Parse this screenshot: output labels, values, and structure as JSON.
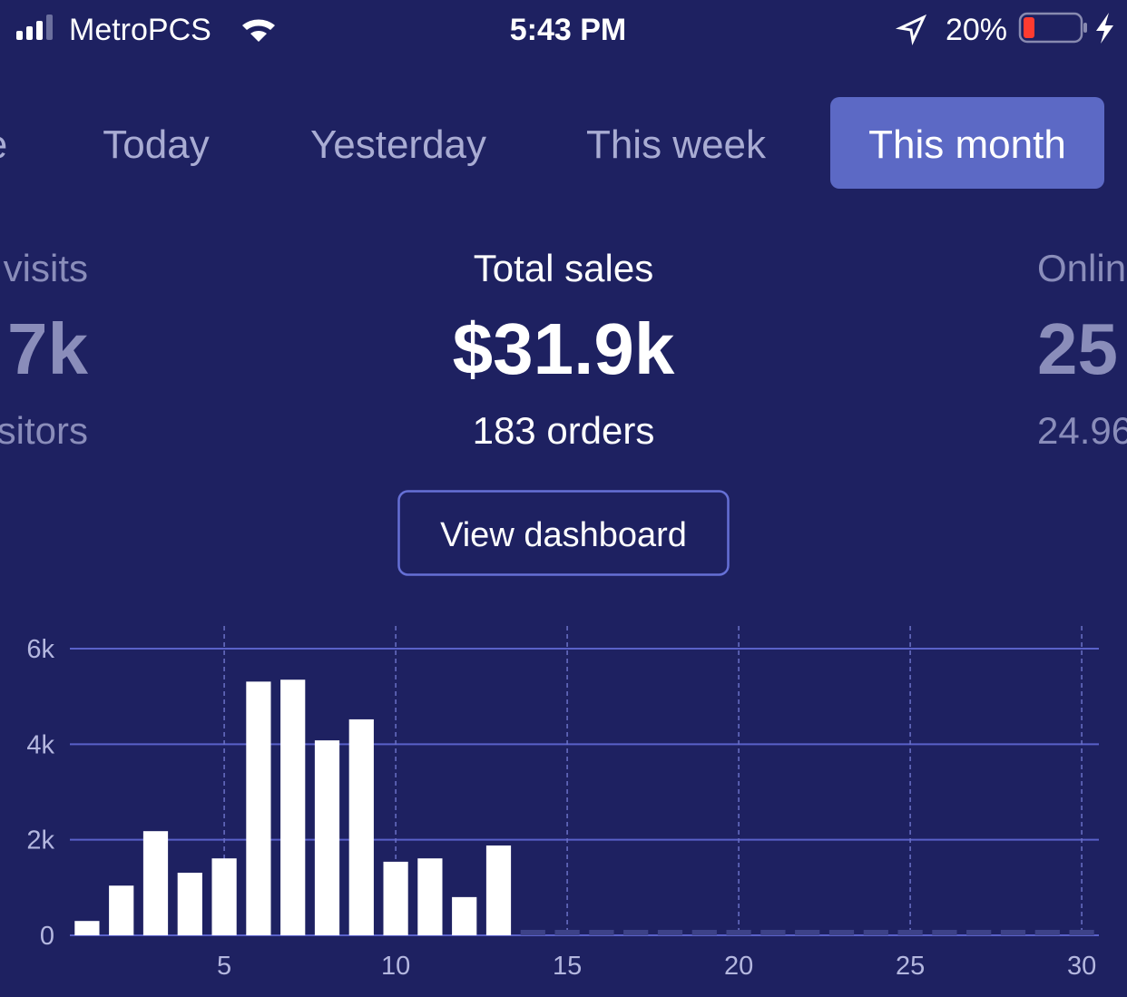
{
  "status_bar": {
    "carrier": "MetroPCS",
    "time": "5:43 PM",
    "battery": "20%"
  },
  "tabs": [
    {
      "label": "e"
    },
    {
      "label": "Today"
    },
    {
      "label": "Yesterday"
    },
    {
      "label": "This week"
    },
    {
      "label": "This month"
    }
  ],
  "stats": [
    {
      "title": "visits",
      "value": "7k",
      "subtitle": "sitors"
    },
    {
      "title": "Total sales",
      "value": "$31.9k",
      "subtitle": "183 orders"
    },
    {
      "title": "Onlin",
      "value": "25",
      "subtitle": "24.96"
    }
  ],
  "button": "View dashboard",
  "chart_data": {
    "type": "bar",
    "x": [
      1,
      2,
      3,
      4,
      5,
      6,
      7,
      8,
      9,
      10,
      11,
      12,
      13,
      14,
      15,
      16,
      17,
      18,
      19,
      20,
      21,
      22,
      23,
      24,
      25,
      26,
      27,
      28,
      29,
      30
    ],
    "values": [
      300,
      1040,
      2180,
      1310,
      1610,
      5310,
      5350,
      4080,
      4520,
      1540,
      1610,
      800,
      1880,
      0,
      0,
      0,
      0,
      0,
      0,
      0,
      0,
      0,
      0,
      0,
      0,
      0,
      0,
      0,
      0,
      0
    ],
    "color": "#ffffff",
    "xlim": [
      0.5,
      30.5
    ],
    "xticks": [
      5,
      10,
      15,
      20,
      25,
      30
    ],
    "ylim": [
      0,
      6000
    ],
    "yticks": [
      0,
      {
        "value": 2000,
        "label": "2k"
      },
      {
        "value": 4000,
        "label": "4k"
      },
      {
        "value": 6000,
        "label": "6k"
      }
    ],
    "grid": true
  }
}
